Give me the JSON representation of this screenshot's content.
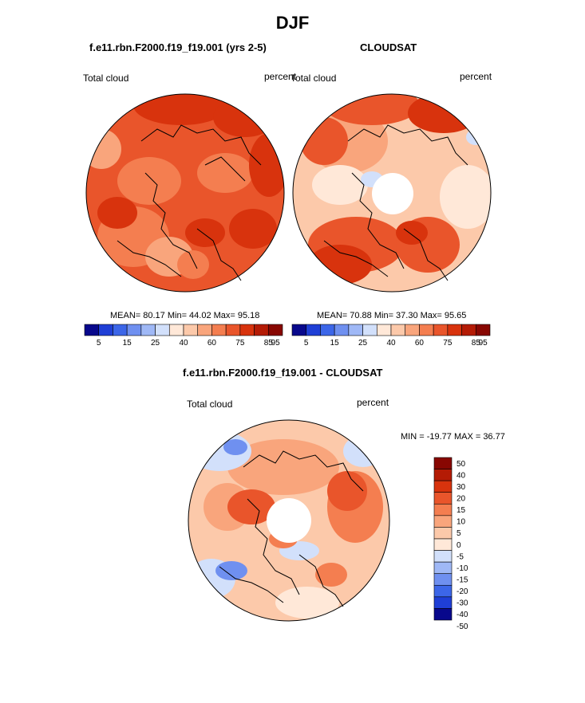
{
  "page": {
    "title": "DJF"
  },
  "panels": {
    "model": {
      "title": "f.e11.rbn.F2000.f19_f19.001 (yrs 2-5)",
      "left_label": "Total cloud",
      "right_label": "percent",
      "stats": "MEAN=  80.17  Min=  44.02  Max=  95.18"
    },
    "obs": {
      "title": "CLOUDSAT",
      "left_label": "Total cloud",
      "right_label": "percent",
      "stats": "MEAN=  70.88  Min=  37.30  Max=  95.65"
    },
    "diff": {
      "title": "f.e11.rbn.F2000.f19_f19.001 - CLOUDSAT",
      "left_label": "Total cloud",
      "right_label": "percent",
      "minmax": "MIN = -19.77 MAX =  36.77"
    }
  },
  "colorbars": {
    "abs": {
      "colors": [
        "#08088c",
        "#1f3fd6",
        "#3c66e8",
        "#6f90f0",
        "#9fb8f6",
        "#d2e0fb",
        "#ffe8d8",
        "#fcc9aa",
        "#f9a57c",
        "#f47e50",
        "#e9552b",
        "#d8330d",
        "#b41b05",
        "#880702"
      ],
      "ticks": [
        "5",
        "15",
        "25",
        "40",
        "60",
        "75",
        "85",
        "95"
      ]
    },
    "diff": {
      "colors": [
        "#880702",
        "#b41b05",
        "#d8330d",
        "#e9552b",
        "#f47e50",
        "#f9a57c",
        "#fcc9aa",
        "#ffe8d8",
        "#d2e0fb",
        "#9fb8f6",
        "#6f90f0",
        "#3c66e8",
        "#1f3fd6",
        "#08088c"
      ],
      "ticks": [
        "50",
        "40",
        "30",
        "20",
        "15",
        "10",
        "5",
        "0",
        "-5",
        "-10",
        "-15",
        "-20",
        "-30",
        "-40",
        "-50"
      ]
    }
  }
}
